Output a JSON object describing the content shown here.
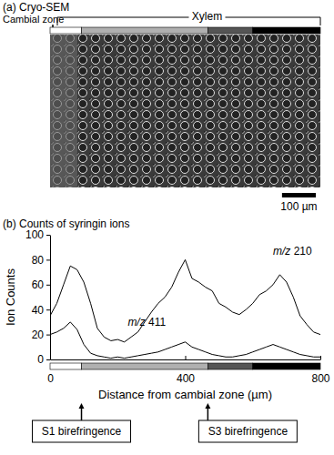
{
  "panel_a": {
    "label": "(a) Cryo-SEM",
    "cambial_label": "Cambial zone",
    "xylem_label": "Xylem",
    "scale_bar": {
      "length": 100,
      "label": "100 µm"
    }
  },
  "chart_data": {
    "type": "line",
    "title": "(b) Counts of syringin ions",
    "x_label": "Distance from cambial zone (µm)",
    "y_label": "Ion Counts",
    "x": [
      0,
      20,
      40,
      60,
      80,
      100,
      120,
      140,
      160,
      180,
      200,
      220,
      240,
      260,
      280,
      300,
      320,
      340,
      360,
      380,
      400,
      420,
      440,
      460,
      480,
      500,
      520,
      540,
      560,
      580,
      600,
      620,
      640,
      660,
      680,
      700,
      720,
      740,
      760,
      780,
      800
    ],
    "series": [
      {
        "name": "m/z 210",
        "color": "#000000",
        "label_x": 660,
        "label_y": 84,
        "values": [
          35,
          45,
          60,
          75,
          72,
          62,
          45,
          25,
          18,
          15,
          16,
          14,
          18,
          22,
          30,
          38,
          45,
          50,
          58,
          70,
          80,
          65,
          62,
          58,
          55,
          45,
          42,
          38,
          36,
          40,
          45,
          52,
          55,
          60,
          68,
          62,
          50,
          35,
          28,
          22,
          20
        ]
      },
      {
        "name": "m/z 411",
        "color": "#000000",
        "label_x": 230,
        "label_y": 27,
        "values": [
          20,
          22,
          25,
          30,
          24,
          12,
          5,
          3,
          2,
          1,
          2,
          1,
          2,
          3,
          4,
          5,
          6,
          8,
          10,
          12,
          14,
          10,
          8,
          6,
          4,
          3,
          2,
          2,
          3,
          4,
          6,
          8,
          10,
          12,
          10,
          8,
          6,
          4,
          3,
          2,
          2
        ]
      }
    ],
    "xlim": [
      0,
      800
    ],
    "ylim": [
      0,
      100
    ],
    "xticks": [
      0,
      400,
      800
    ],
    "yticks": [
      0,
      20,
      40,
      60,
      80,
      100
    ],
    "zones": [
      {
        "start": 0,
        "end": 93,
        "color": "#ffffff"
      },
      {
        "start": 93,
        "end": 467,
        "color": "#b0b0b0"
      },
      {
        "start": 467,
        "end": 600,
        "color": "#555555"
      },
      {
        "start": 600,
        "end": 800,
        "color": "#000000"
      }
    ],
    "annotations": [
      {
        "text": "S1 birefringence",
        "x": 93
      },
      {
        "text": "S3 birefringence",
        "x": 467
      }
    ]
  }
}
